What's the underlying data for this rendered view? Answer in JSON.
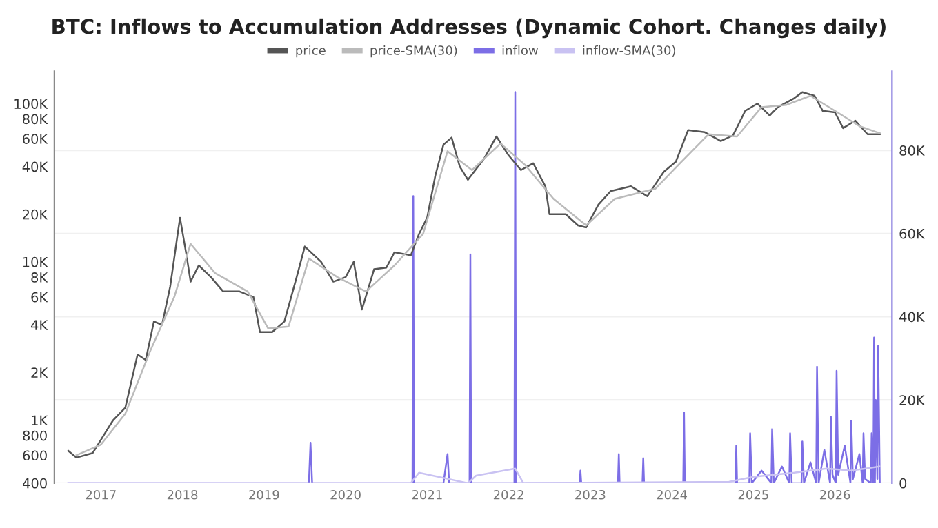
{
  "chart_data": {
    "type": "line",
    "title": "BTC: Inflows to Accumulation Addresses (Dynamic Cohort. Changes daily)",
    "legend": "top",
    "grid": "y",
    "log": "y",
    "marker": "none",
    "line_style": "solid",
    "xlim": [
      2016.43,
      2026.7
    ],
    "xticks": [
      2017,
      2018,
      2019,
      2020,
      2021,
      2022,
      2023,
      2024,
      2025,
      2026
    ],
    "ylim": [
      400,
      160000
    ],
    "yticks": [
      {
        "value": 400,
        "label": "400"
      },
      {
        "value": 600,
        "label": "600"
      },
      {
        "value": 800,
        "label": "800"
      },
      {
        "value": 1000,
        "label": "1K"
      },
      {
        "value": 2000,
        "label": "2K"
      },
      {
        "value": 4000,
        "label": "4K"
      },
      {
        "value": 6000,
        "label": "6K"
      },
      {
        "value": 8000,
        "label": "8K"
      },
      {
        "value": 10000,
        "label": "10K"
      },
      {
        "value": 20000,
        "label": "20K"
      },
      {
        "value": 40000,
        "label": "40K"
      },
      {
        "value": 60000,
        "label": "60K"
      },
      {
        "value": 80000,
        "label": "80K"
      },
      {
        "value": 100000,
        "label": "100K"
      }
    ],
    "y2lim": [
      0,
      99000
    ],
    "y2ticks": [
      {
        "value": 0,
        "label": "0"
      },
      {
        "value": 20000,
        "label": "20K"
      },
      {
        "value": 40000,
        "label": "40K"
      },
      {
        "value": 60000,
        "label": "60K"
      },
      {
        "value": 80000,
        "label": "80K"
      }
    ],
    "series": [
      {
        "name": "price",
        "color": "#555555",
        "x": [
          2016.6,
          2016.7,
          2016.9,
          2017.0,
          2017.15,
          2017.3,
          2017.45,
          2017.55,
          2017.65,
          2017.75,
          2017.85,
          2017.97,
          2018.05,
          2018.1,
          2018.2,
          2018.35,
          2018.5,
          2018.7,
          2018.87,
          2018.95,
          2019.1,
          2019.25,
          2019.4,
          2019.5,
          2019.7,
          2019.85,
          2020.0,
          2020.1,
          2020.2,
          2020.35,
          2020.5,
          2020.6,
          2020.8,
          2020.9,
          2021.0,
          2021.1,
          2021.2,
          2021.3,
          2021.4,
          2021.5,
          2021.7,
          2021.85,
          2022.0,
          2022.15,
          2022.3,
          2022.45,
          2022.5,
          2022.7,
          2022.85,
          2022.95,
          2023.1,
          2023.25,
          2023.5,
          2023.7,
          2023.9,
          2024.05,
          2024.2,
          2024.4,
          2024.6,
          2024.75,
          2024.9,
          2025.05,
          2025.2,
          2025.3,
          2025.5,
          2025.6,
          2025.75,
          2025.85,
          2026.0,
          2026.1,
          2026.25,
          2026.4,
          2026.55
        ],
        "values": [
          640,
          580,
          620,
          750,
          1000,
          1200,
          2600,
          2400,
          4200,
          4000,
          7000,
          19000,
          11000,
          7500,
          9500,
          8000,
          6500,
          6500,
          6000,
          3600,
          3600,
          4200,
          8000,
          12500,
          10000,
          7500,
          8000,
          10000,
          5000,
          9000,
          9200,
          11500,
          11000,
          15000,
          19000,
          35000,
          55000,
          61000,
          40000,
          33000,
          45000,
          62000,
          47000,
          38000,
          42000,
          30000,
          20000,
          20000,
          17000,
          16500,
          23000,
          28000,
          30000,
          26000,
          37000,
          43000,
          68000,
          66000,
          58000,
          63000,
          90000,
          100000,
          84000,
          95000,
          108000,
          118000,
          112000,
          90000,
          88000,
          70000,
          78000,
          64000,
          64000
        ]
      },
      {
        "name": "price-SMA(30)",
        "color": "#bbbbbb",
        "x": [
          2016.7,
          2017.0,
          2017.3,
          2017.6,
          2017.9,
          2018.1,
          2018.4,
          2018.8,
          2019.05,
          2019.3,
          2019.55,
          2019.9,
          2020.25,
          2020.6,
          2020.95,
          2021.25,
          2021.55,
          2021.9,
          2022.2,
          2022.55,
          2022.95,
          2023.3,
          2023.8,
          2024.1,
          2024.45,
          2024.8,
          2025.1,
          2025.4,
          2025.7,
          2026.0,
          2026.3,
          2026.55
        ],
        "values": [
          600,
          700,
          1100,
          2700,
          6000,
          13000,
          8500,
          6500,
          3800,
          3900,
          10500,
          8000,
          6500,
          9500,
          15000,
          50000,
          38000,
          56000,
          41000,
          25000,
          17000,
          25000,
          29000,
          42000,
          64000,
          62000,
          95000,
          98000,
          112000,
          90000,
          72000,
          65000
        ]
      },
      {
        "name": "inflow",
        "color": "#7c6ee6",
        "axis": "y2",
        "x": [
          2016.6,
          2019.55,
          2019.57,
          2019.59,
          2020.2,
          2020.82,
          2020.83,
          2020.84,
          2021.2,
          2021.25,
          2021.27,
          2021.52,
          2021.53,
          2021.54,
          2022.07,
          2022.08,
          2022.09,
          2022.87,
          2022.88,
          2022.89,
          2023.34,
          2023.35,
          2023.36,
          2023.64,
          2023.65,
          2023.66,
          2024.14,
          2024.15,
          2024.16,
          2024.78,
          2024.79,
          2024.8,
          2024.95,
          2024.96,
          2024.98,
          2025.1,
          2025.22,
          2025.23,
          2025.25,
          2025.35,
          2025.44,
          2025.45,
          2025.47,
          2025.59,
          2025.6,
          2025.62,
          2025.7,
          2025.77,
          2025.78,
          2025.8,
          2025.87,
          2025.94,
          2025.95,
          2025.97,
          2026.01,
          2026.02,
          2026.04,
          2026.12,
          2026.19,
          2026.2,
          2026.22,
          2026.3,
          2026.34,
          2026.35,
          2026.37,
          2026.44,
          2026.45,
          2026.47,
          2026.48,
          2026.49,
          2026.5,
          2026.52,
          2026.53,
          2026.55
        ],
        "values": [
          0,
          0,
          9700,
          0,
          0,
          0,
          69000,
          0,
          0,
          7000,
          0,
          0,
          55000,
          0,
          0,
          94000,
          0,
          0,
          3000,
          0,
          0,
          7000,
          0,
          0,
          6000,
          0,
          0,
          17000,
          0,
          0,
          9000,
          0,
          0,
          12000,
          0,
          3000,
          0,
          13000,
          0,
          4000,
          0,
          12000,
          0,
          0,
          10000,
          0,
          5000,
          0,
          28000,
          0,
          8000,
          0,
          16000,
          2000,
          0,
          27000,
          2000,
          9000,
          0,
          15000,
          1000,
          7000,
          0,
          12000,
          1000,
          0,
          12000,
          0,
          35000,
          0,
          20000,
          1000,
          33000,
          0
        ]
      },
      {
        "name": "inflow-SMA(30)",
        "color": "#c9c2f2",
        "axis": "y2",
        "x": [
          2016.6,
          2020.8,
          2020.9,
          2021.5,
          2021.6,
          2022.08,
          2022.18,
          2024.7,
          2025.0,
          2025.5,
          2025.9,
          2026.2,
          2026.55
        ],
        "values": [
          0,
          0,
          2500,
          0,
          1800,
          3500,
          0,
          300,
          1500,
          2500,
          3500,
          3000,
          4000
        ]
      }
    ]
  }
}
